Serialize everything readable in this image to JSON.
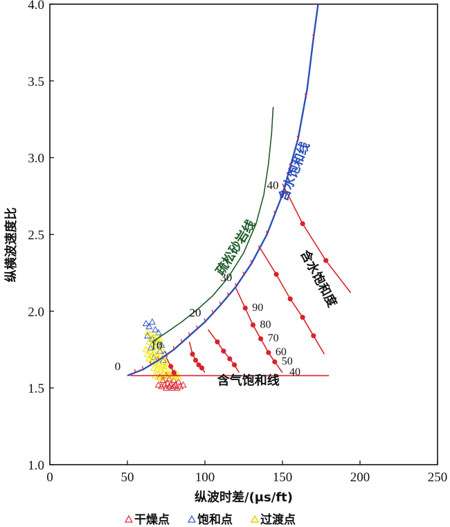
{
  "chart_data": {
    "type": "scatter",
    "xlabel": "纵波时差/(μs/ft)",
    "ylabel": "纵横波速度比",
    "xlim": [
      0,
      250
    ],
    "ylim": [
      1.0,
      4.0
    ],
    "x_ticks": [
      "0",
      "50",
      "100",
      "150",
      "200",
      "250"
    ],
    "y_ticks": [
      "1.0",
      "1.5",
      "2.0",
      "2.5",
      "3.0",
      "3.5",
      "4.0"
    ],
    "colors": {
      "water_line": "#2a4fb8",
      "loose_sand": "#1e5a2a",
      "gas_line": "#d8232a",
      "dry": "#e0303a",
      "saturated": "#3a5fd0",
      "transition": "#f2e600"
    },
    "series": [
      {
        "name": "含水饱和线",
        "kind": "line",
        "points": [
          [
            50,
            1.58
          ],
          [
            60,
            1.62
          ],
          [
            70,
            1.68
          ],
          [
            80,
            1.75
          ],
          [
            90,
            1.84
          ],
          [
            100,
            1.93
          ],
          [
            110,
            2.04
          ],
          [
            120,
            2.16
          ],
          [
            130,
            2.31
          ],
          [
            140,
            2.5
          ],
          [
            150,
            2.76
          ],
          [
            160,
            3.12
          ],
          [
            166,
            3.45
          ],
          [
            170,
            3.78
          ],
          [
            173,
            4.0
          ]
        ],
        "porosity_ticks": [
          {
            "label": "0",
            "x": 50
          },
          {
            "label": "10",
            "x": 75
          },
          {
            "label": "20",
            "x": 100
          },
          {
            "label": "30",
            "x": 120
          },
          {
            "label": "40",
            "x": 150
          }
        ]
      },
      {
        "name": "疏松砂岩线",
        "kind": "line",
        "points": [
          [
            66,
            1.8
          ],
          [
            75,
            1.86
          ],
          [
            85,
            1.93
          ],
          [
            95,
            2.01
          ],
          [
            105,
            2.1
          ],
          [
            115,
            2.22
          ],
          [
            125,
            2.38
          ],
          [
            133,
            2.57
          ],
          [
            138,
            2.76
          ],
          [
            141,
            2.96
          ],
          [
            143,
            3.16
          ],
          [
            144,
            3.33
          ]
        ]
      },
      {
        "name": "含气饱和线",
        "kind": "line",
        "points": [
          [
            52,
            1.58
          ],
          [
            180,
            1.58
          ]
        ]
      },
      {
        "name": "含水饱和度",
        "kind": "saturation-lines",
        "saturation_labels": [
          "90",
          "80",
          "70",
          "60",
          "50",
          "40"
        ],
        "lines": [
          [
            [
              75,
              1.7
            ],
            [
              78,
              1.64
            ],
            [
              80,
              1.6
            ],
            [
              82,
              1.58
            ]
          ],
          [
            [
              90,
              1.8
            ],
            [
              92,
              1.72
            ],
            [
              94,
              1.68
            ],
            [
              96,
              1.65
            ],
            [
              98,
              1.63
            ],
            [
              100,
              1.6
            ]
          ],
          [
            [
              102,
              1.88
            ],
            [
              108,
              1.8
            ],
            [
              112,
              1.74
            ],
            [
              116,
              1.69
            ],
            [
              119,
              1.65
            ],
            [
              122,
              1.6
            ]
          ],
          [
            [
              120,
              2.15
            ],
            [
              126,
              2.02
            ],
            [
              131,
              1.91
            ],
            [
              136,
              1.82
            ],
            [
              141,
              1.73
            ],
            [
              145,
              1.67
            ],
            [
              150,
              1.6
            ]
          ],
          [
            [
              135,
              2.42
            ],
            [
              146,
              2.24
            ],
            [
              155,
              2.08
            ],
            [
              163,
              1.96
            ],
            [
              170,
              1.84
            ],
            [
              177,
              1.72
            ]
          ],
          [
            [
              150,
              2.83
            ],
            [
              163,
              2.57
            ],
            [
              178,
              2.33
            ],
            [
              194,
              2.12
            ]
          ]
        ]
      },
      {
        "name": "干燥点",
        "kind": "scatter",
        "marker": "triangle",
        "points": [
          [
            70,
            1.52
          ],
          [
            72,
            1.51
          ],
          [
            74,
            1.52
          ],
          [
            75,
            1.5
          ],
          [
            76,
            1.53
          ],
          [
            77,
            1.51
          ],
          [
            78,
            1.52
          ],
          [
            79,
            1.5
          ],
          [
            80,
            1.51
          ],
          [
            81,
            1.52
          ],
          [
            82,
            1.5
          ],
          [
            84,
            1.51
          ],
          [
            73,
            1.55
          ],
          [
            77,
            1.56
          ],
          [
            80,
            1.55
          ],
          [
            83,
            1.54
          ],
          [
            71,
            1.57
          ],
          [
            75,
            1.58
          ],
          [
            79,
            1.57
          ],
          [
            86,
            1.52
          ]
        ]
      },
      {
        "name": "饱和点",
        "kind": "scatter",
        "marker": "triangle",
        "points": [
          [
            62,
            1.92
          ],
          [
            64,
            1.9
          ],
          [
            66,
            1.93
          ],
          [
            68,
            1.88
          ],
          [
            70,
            1.86
          ],
          [
            63,
            1.84
          ],
          [
            66,
            1.82
          ],
          [
            69,
            1.8
          ],
          [
            72,
            1.78
          ],
          [
            65,
            1.76
          ],
          [
            71,
            1.74
          ],
          [
            74,
            1.72
          ],
          [
            67,
            1.7
          ],
          [
            73,
            1.68
          ]
        ]
      },
      {
        "name": "过渡点",
        "kind": "scatter",
        "marker": "triangle",
        "points": [
          [
            63,
            1.86
          ],
          [
            65,
            1.85
          ],
          [
            67,
            1.83
          ],
          [
            69,
            1.84
          ],
          [
            71,
            1.82
          ],
          [
            64,
            1.8
          ],
          [
            66,
            1.79
          ],
          [
            68,
            1.78
          ],
          [
            70,
            1.77
          ],
          [
            72,
            1.76
          ],
          [
            62,
            1.75
          ],
          [
            65,
            1.74
          ],
          [
            67,
            1.73
          ],
          [
            69,
            1.72
          ],
          [
            71,
            1.71
          ],
          [
            73,
            1.7
          ],
          [
            64,
            1.69
          ],
          [
            66,
            1.68
          ],
          [
            68,
            1.67
          ],
          [
            70,
            1.66
          ],
          [
            72,
            1.65
          ],
          [
            74,
            1.64
          ],
          [
            67,
            1.63
          ],
          [
            69,
            1.62
          ],
          [
            71,
            1.61
          ],
          [
            73,
            1.6
          ],
          [
            75,
            1.59
          ],
          [
            68,
            1.58
          ],
          [
            70,
            1.57
          ],
          [
            72,
            1.56
          ],
          [
            74,
            1.62
          ],
          [
            76,
            1.66
          ],
          [
            78,
            1.61
          ],
          [
            80,
            1.6
          ],
          [
            82,
            1.59
          ],
          [
            77,
            1.58
          ],
          [
            79,
            1.57
          ],
          [
            81,
            1.58
          ],
          [
            83,
            1.57
          ],
          [
            66,
            1.71
          ],
          [
            63,
            1.72
          ],
          [
            70,
            1.81
          ],
          [
            74,
            1.67
          ]
        ]
      }
    ],
    "legend": [
      "干燥点",
      "饱和点",
      "过渡点"
    ],
    "legend_position": "bottom",
    "annotations": [
      {
        "text": "含水饱和线",
        "x": 160,
        "y": 2.9,
        "angle": -68
      },
      {
        "text": "疏松砂岩线",
        "x": 122,
        "y": 2.4,
        "angle": -58
      },
      {
        "text": "含水饱和度",
        "x": 171,
        "y": 2.2,
        "angle": 62
      },
      {
        "text": "含气饱和线",
        "x": 128,
        "y": 1.52,
        "angle": 0
      }
    ]
  },
  "legend_items": {
    "dry": "干燥点",
    "saturated": "饱和点",
    "transition": "过渡点"
  }
}
